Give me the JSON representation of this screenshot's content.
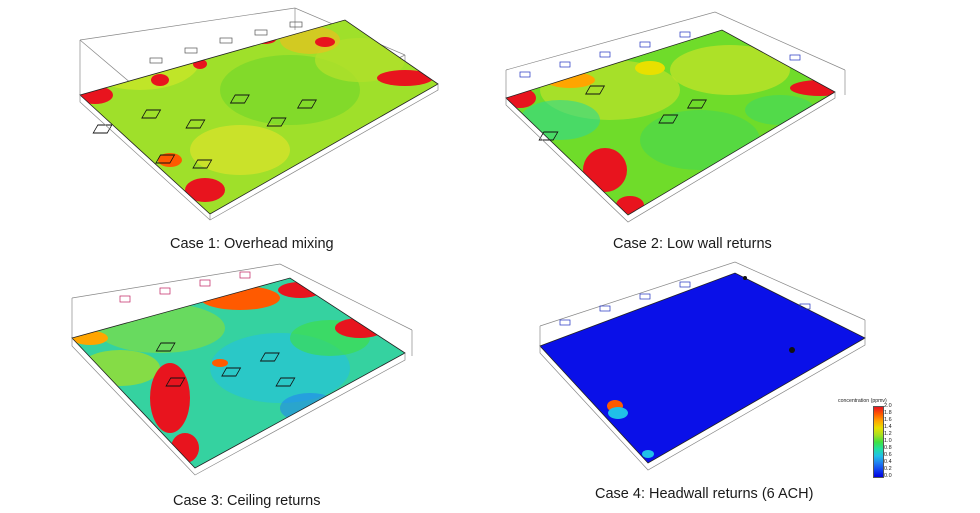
{
  "cases": [
    {
      "caption": "Case 1: Overhead mixing",
      "base_color": "#9fe02a"
    },
    {
      "caption": "Case 2: Low wall returns",
      "base_color": "#6fdc2a"
    },
    {
      "caption": "Case 3: Ceiling returns",
      "base_color": "#35d2a0"
    },
    {
      "caption": "Case 4: Headwall returns (6 ACH)",
      "base_color": "#0a10e8"
    }
  ],
  "legend": {
    "title": "concentration (ppmv)",
    "ticks": [
      "2.0",
      "1.8",
      "1.6",
      "1.4",
      "1.2",
      "1.0",
      "0.8",
      "0.6",
      "0.4",
      "0.2",
      "0.0"
    ],
    "colors": [
      "#e8141e",
      "#ff5a00",
      "#ffa500",
      "#e8e000",
      "#a8e020",
      "#40e040",
      "#20e0a0",
      "#20c0e8",
      "#2080f0",
      "#1040f0",
      "#0000e0"
    ]
  }
}
